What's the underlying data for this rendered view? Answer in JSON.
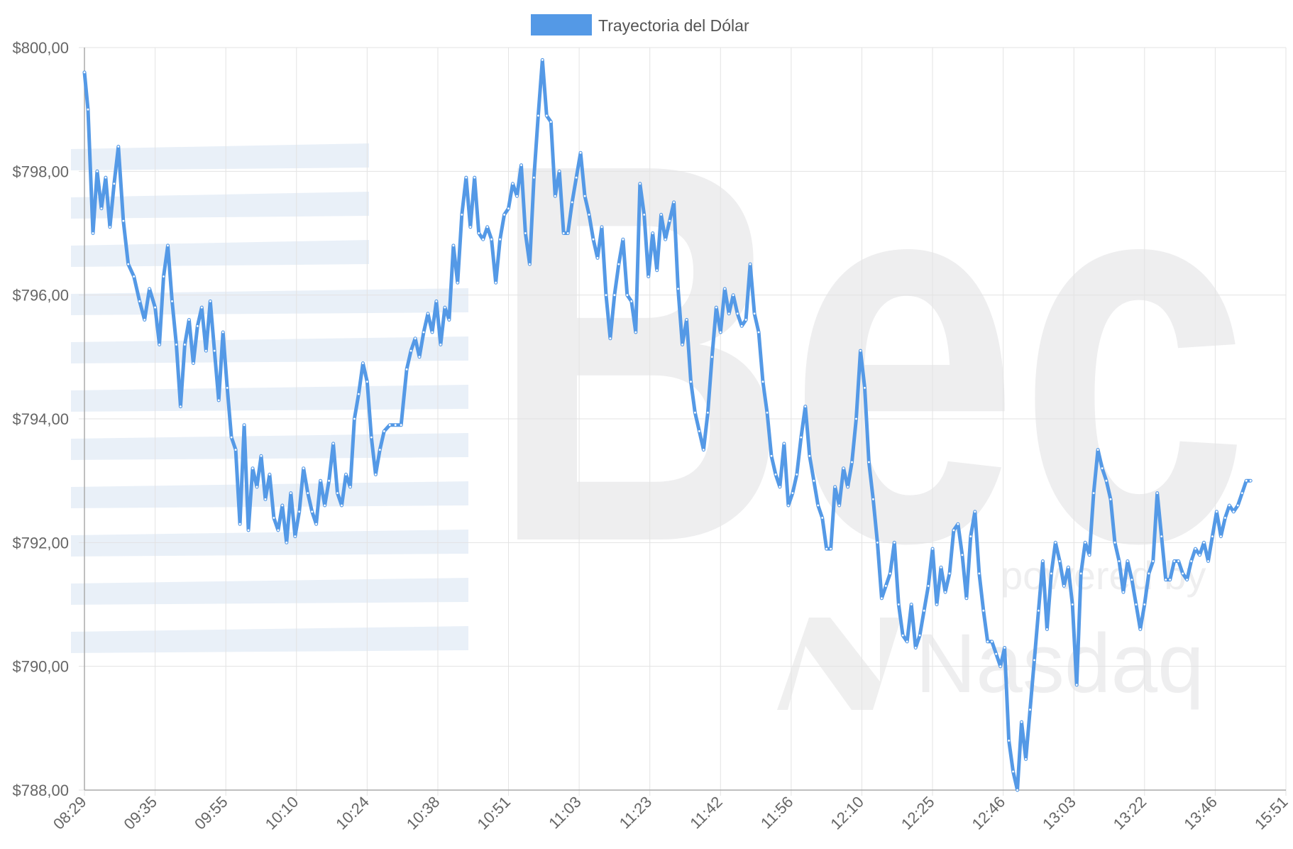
{
  "colors": {
    "series": "#5499e6",
    "grid": "#e3e3e3",
    "axis": "#aaaaaa",
    "watermark": "#e4ecf6"
  },
  "watermark": {
    "text": "Bec",
    "sub": "powered by",
    "brand": "Nasdaq"
  },
  "chart_data": {
    "type": "line",
    "legend_position": "top-center",
    "grid": true,
    "xlabel": "",
    "ylabel": "",
    "categories": [
      "08:29",
      "09:35",
      "09:55",
      "10:10",
      "10:24",
      "10:38",
      "10:51",
      "11:03",
      "11:23",
      "11:42",
      "11:56",
      "12:10",
      "12:25",
      "12:46",
      "13:03",
      "13:22",
      "13:46",
      "15:51"
    ],
    "y_ticks": [
      "$800,00",
      "$798,00",
      "$796,00",
      "$794,00",
      "$792,00",
      "$790,00",
      "$788,00"
    ],
    "ylim": [
      788,
      800
    ],
    "series": [
      {
        "name": "Trayectoria del Dólar",
        "points": [
          [
            0.0,
            799.6
          ],
          [
            0.05,
            799.0
          ],
          [
            0.12,
            797.0
          ],
          [
            0.18,
            798.0
          ],
          [
            0.24,
            797.4
          ],
          [
            0.3,
            797.9
          ],
          [
            0.36,
            797.1
          ],
          [
            0.42,
            797.8
          ],
          [
            0.48,
            798.4
          ],
          [
            0.55,
            797.2
          ],
          [
            0.62,
            796.5
          ],
          [
            0.7,
            796.3
          ],
          [
            0.78,
            795.9
          ],
          [
            0.85,
            795.6
          ],
          [
            0.92,
            796.1
          ],
          [
            1.0,
            795.8
          ],
          [
            1.06,
            795.2
          ],
          [
            1.12,
            796.3
          ],
          [
            1.18,
            796.8
          ],
          [
            1.24,
            795.9
          ],
          [
            1.3,
            795.2
          ],
          [
            1.36,
            794.2
          ],
          [
            1.42,
            795.2
          ],
          [
            1.48,
            795.6
          ],
          [
            1.54,
            794.9
          ],
          [
            1.6,
            795.5
          ],
          [
            1.66,
            795.8
          ],
          [
            1.72,
            795.1
          ],
          [
            1.78,
            795.9
          ],
          [
            1.84,
            795.1
          ],
          [
            1.9,
            794.3
          ],
          [
            1.96,
            795.4
          ],
          [
            2.02,
            794.5
          ],
          [
            2.08,
            793.7
          ],
          [
            2.14,
            793.5
          ],
          [
            2.2,
            792.3
          ],
          [
            2.26,
            793.9
          ],
          [
            2.32,
            792.2
          ],
          [
            2.38,
            793.2
          ],
          [
            2.44,
            792.9
          ],
          [
            2.5,
            793.4
          ],
          [
            2.56,
            792.7
          ],
          [
            2.62,
            793.1
          ],
          [
            2.68,
            792.4
          ],
          [
            2.74,
            792.2
          ],
          [
            2.8,
            792.6
          ],
          [
            2.86,
            792.0
          ],
          [
            2.92,
            792.8
          ],
          [
            2.98,
            792.1
          ],
          [
            3.04,
            792.5
          ],
          [
            3.1,
            793.2
          ],
          [
            3.16,
            792.8
          ],
          [
            3.22,
            792.5
          ],
          [
            3.28,
            792.3
          ],
          [
            3.34,
            793.0
          ],
          [
            3.4,
            792.6
          ],
          [
            3.46,
            793.0
          ],
          [
            3.52,
            793.6
          ],
          [
            3.58,
            792.8
          ],
          [
            3.64,
            792.6
          ],
          [
            3.7,
            793.1
          ],
          [
            3.76,
            792.9
          ],
          [
            3.82,
            794.0
          ],
          [
            3.88,
            794.4
          ],
          [
            3.94,
            794.9
          ],
          [
            4.0,
            794.6
          ],
          [
            4.06,
            793.7
          ],
          [
            4.12,
            793.1
          ],
          [
            4.18,
            793.5
          ],
          [
            4.24,
            793.8
          ],
          [
            4.32,
            793.9
          ],
          [
            4.4,
            793.9
          ],
          [
            4.48,
            793.9
          ],
          [
            4.56,
            794.8
          ],
          [
            4.62,
            795.1
          ],
          [
            4.68,
            795.3
          ],
          [
            4.74,
            795.0
          ],
          [
            4.8,
            795.4
          ],
          [
            4.86,
            795.7
          ],
          [
            4.92,
            795.4
          ],
          [
            4.98,
            795.9
          ],
          [
            5.04,
            795.2
          ],
          [
            5.1,
            795.8
          ],
          [
            5.16,
            795.6
          ],
          [
            5.22,
            796.8
          ],
          [
            5.28,
            796.2
          ],
          [
            5.34,
            797.3
          ],
          [
            5.4,
            797.9
          ],
          [
            5.46,
            797.1
          ],
          [
            5.52,
            797.9
          ],
          [
            5.58,
            797.0
          ],
          [
            5.64,
            796.9
          ],
          [
            5.7,
            797.1
          ],
          [
            5.76,
            796.9
          ],
          [
            5.82,
            796.2
          ],
          [
            5.88,
            796.9
          ],
          [
            5.94,
            797.3
          ],
          [
            6.0,
            797.4
          ],
          [
            6.06,
            797.8
          ],
          [
            6.12,
            797.6
          ],
          [
            6.18,
            798.1
          ],
          [
            6.24,
            797.0
          ],
          [
            6.3,
            796.5
          ],
          [
            6.36,
            797.9
          ],
          [
            6.42,
            798.9
          ],
          [
            6.48,
            799.8
          ],
          [
            6.54,
            798.9
          ],
          [
            6.6,
            798.8
          ],
          [
            6.66,
            797.6
          ],
          [
            6.72,
            798.0
          ],
          [
            6.78,
            797.0
          ],
          [
            6.84,
            797.0
          ],
          [
            6.9,
            797.5
          ],
          [
            6.96,
            797.9
          ],
          [
            7.02,
            798.3
          ],
          [
            7.08,
            797.6
          ],
          [
            7.14,
            797.3
          ],
          [
            7.2,
            796.9
          ],
          [
            7.26,
            796.6
          ],
          [
            7.32,
            797.1
          ],
          [
            7.38,
            796.0
          ],
          [
            7.44,
            795.3
          ],
          [
            7.5,
            796.0
          ],
          [
            7.56,
            796.5
          ],
          [
            7.62,
            796.9
          ],
          [
            7.68,
            796.0
          ],
          [
            7.74,
            795.9
          ],
          [
            7.8,
            795.4
          ],
          [
            7.86,
            797.8
          ],
          [
            7.92,
            797.3
          ],
          [
            7.98,
            796.3
          ],
          [
            8.04,
            797.0
          ],
          [
            8.1,
            796.4
          ],
          [
            8.16,
            797.3
          ],
          [
            8.22,
            796.9
          ],
          [
            8.28,
            797.2
          ],
          [
            8.34,
            797.5
          ],
          [
            8.4,
            796.1
          ],
          [
            8.46,
            795.2
          ],
          [
            8.52,
            795.6
          ],
          [
            8.58,
            794.6
          ],
          [
            8.64,
            794.1
          ],
          [
            8.7,
            793.8
          ],
          [
            8.76,
            793.5
          ],
          [
            8.82,
            794.1
          ],
          [
            8.88,
            795.0
          ],
          [
            8.94,
            795.8
          ],
          [
            9.0,
            795.4
          ],
          [
            9.06,
            796.1
          ],
          [
            9.12,
            795.7
          ],
          [
            9.18,
            796.0
          ],
          [
            9.24,
            795.7
          ],
          [
            9.3,
            795.5
          ],
          [
            9.36,
            795.6
          ],
          [
            9.42,
            796.5
          ],
          [
            9.48,
            795.7
          ],
          [
            9.54,
            795.4
          ],
          [
            9.6,
            794.6
          ],
          [
            9.66,
            794.1
          ],
          [
            9.72,
            793.4
          ],
          [
            9.78,
            793.1
          ],
          [
            9.84,
            792.9
          ],
          [
            9.9,
            793.6
          ],
          [
            9.96,
            792.6
          ],
          [
            10.02,
            792.8
          ],
          [
            10.08,
            793.1
          ],
          [
            10.14,
            793.7
          ],
          [
            10.2,
            794.2
          ],
          [
            10.26,
            793.4
          ],
          [
            10.32,
            793.0
          ],
          [
            10.38,
            792.6
          ],
          [
            10.44,
            792.4
          ],
          [
            10.5,
            791.9
          ],
          [
            10.56,
            791.9
          ],
          [
            10.62,
            792.9
          ],
          [
            10.68,
            792.6
          ],
          [
            10.74,
            793.2
          ],
          [
            10.8,
            792.9
          ],
          [
            10.86,
            793.3
          ],
          [
            10.92,
            794.0
          ],
          [
            10.98,
            795.1
          ],
          [
            11.04,
            794.5
          ],
          [
            11.1,
            793.3
          ],
          [
            11.16,
            792.7
          ],
          [
            11.22,
            792.0
          ],
          [
            11.28,
            791.1
          ],
          [
            11.34,
            791.3
          ],
          [
            11.4,
            791.5
          ],
          [
            11.46,
            792.0
          ],
          [
            11.52,
            791.0
          ],
          [
            11.58,
            790.5
          ],
          [
            11.64,
            790.4
          ],
          [
            11.7,
            791.0
          ],
          [
            11.76,
            790.3
          ],
          [
            11.82,
            790.5
          ],
          [
            11.88,
            790.9
          ],
          [
            11.94,
            791.3
          ],
          [
            12.0,
            791.9
          ],
          [
            12.06,
            791.0
          ],
          [
            12.12,
            791.6
          ],
          [
            12.18,
            791.2
          ],
          [
            12.24,
            791.5
          ],
          [
            12.3,
            792.2
          ],
          [
            12.36,
            792.3
          ],
          [
            12.42,
            791.8
          ],
          [
            12.48,
            791.1
          ],
          [
            12.54,
            792.1
          ],
          [
            12.6,
            792.5
          ],
          [
            12.66,
            791.5
          ],
          [
            12.72,
            790.9
          ],
          [
            12.78,
            790.4
          ],
          [
            12.84,
            790.4
          ],
          [
            12.9,
            790.2
          ],
          [
            12.96,
            790.0
          ],
          [
            13.02,
            790.3
          ],
          [
            13.08,
            788.8
          ],
          [
            13.14,
            788.3
          ],
          [
            13.2,
            788.0
          ],
          [
            13.26,
            789.1
          ],
          [
            13.32,
            788.5
          ],
          [
            13.38,
            789.3
          ],
          [
            13.44,
            790.1
          ],
          [
            13.5,
            790.9
          ],
          [
            13.56,
            791.7
          ],
          [
            13.62,
            790.6
          ],
          [
            13.68,
            791.5
          ],
          [
            13.74,
            792.0
          ],
          [
            13.8,
            791.7
          ],
          [
            13.86,
            791.3
          ],
          [
            13.92,
            791.6
          ],
          [
            13.98,
            791.0
          ],
          [
            14.04,
            789.7
          ],
          [
            14.1,
            791.5
          ],
          [
            14.16,
            792.0
          ],
          [
            14.22,
            791.8
          ],
          [
            14.28,
            792.8
          ],
          [
            14.34,
            793.5
          ],
          [
            14.4,
            793.2
          ],
          [
            14.46,
            793.0
          ],
          [
            14.52,
            792.7
          ],
          [
            14.58,
            792.0
          ],
          [
            14.64,
            791.7
          ],
          [
            14.7,
            791.2
          ],
          [
            14.76,
            791.7
          ],
          [
            14.82,
            791.4
          ],
          [
            14.88,
            791.0
          ],
          [
            14.94,
            790.6
          ],
          [
            15.0,
            791.0
          ],
          [
            15.06,
            791.5
          ],
          [
            15.12,
            791.7
          ],
          [
            15.18,
            792.8
          ],
          [
            15.24,
            792.1
          ],
          [
            15.3,
            791.4
          ],
          [
            15.36,
            791.4
          ],
          [
            15.42,
            791.7
          ],
          [
            15.48,
            791.7
          ],
          [
            15.54,
            791.5
          ],
          [
            15.6,
            791.4
          ],
          [
            15.66,
            791.7
          ],
          [
            15.72,
            791.9
          ],
          [
            15.78,
            791.8
          ],
          [
            15.84,
            792.0
          ],
          [
            15.9,
            791.7
          ],
          [
            15.96,
            792.1
          ],
          [
            16.02,
            792.5
          ],
          [
            16.08,
            792.1
          ],
          [
            16.14,
            792.4
          ],
          [
            16.2,
            792.6
          ],
          [
            16.26,
            792.5
          ],
          [
            16.32,
            792.6
          ],
          [
            16.38,
            792.8
          ],
          [
            16.44,
            793.0
          ],
          [
            16.5,
            793.0
          ]
        ]
      }
    ]
  }
}
